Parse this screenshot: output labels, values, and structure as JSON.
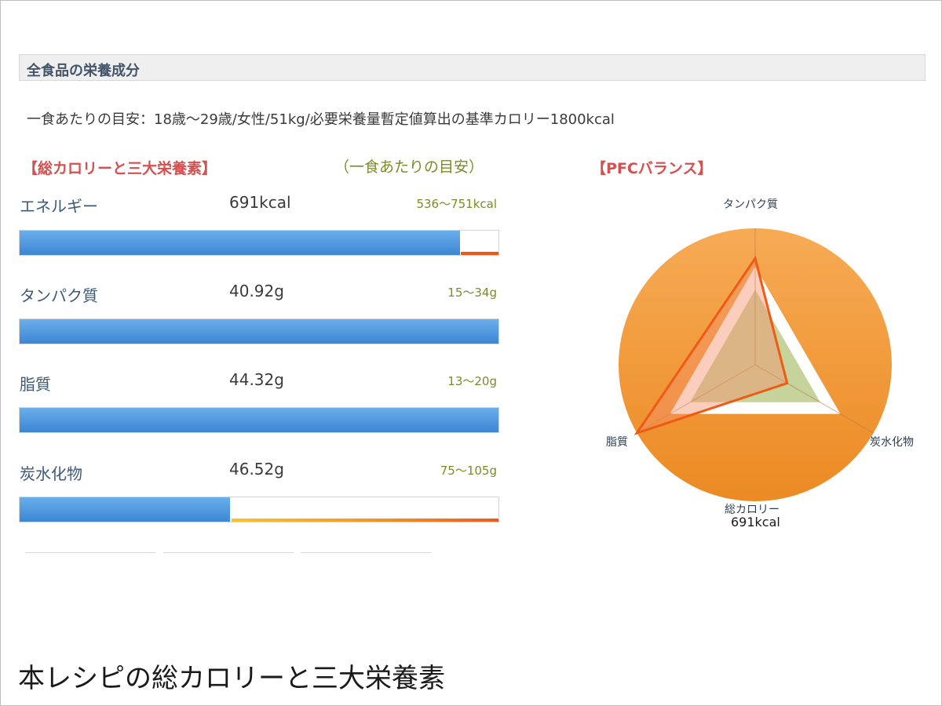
{
  "header": {
    "title": "全食品の栄養成分"
  },
  "guideline": "一食あたりの目安：18歳〜29歳/女性/51kg/必要栄養量暫定値算出の基準カロリー1800kcal",
  "left_heading": "【総カロリーと三大栄養素】",
  "left_range_heading": "（一食あたりの目安）",
  "right_heading": "【PFCバランス】",
  "caption": "本レシピの総カロリーと三大栄養素",
  "colors": {
    "bar_blue": "#3c86d4",
    "target_red": "#f0581a",
    "range_green": "#7e8a2a",
    "heading_red": "#d5504f",
    "pfc_orange": "#f29a35"
  },
  "chart_data": [
    {
      "type": "bar",
      "orientation": "horizontal",
      "title": "【総カロリーと三大栄養素】",
      "categories": [
        "エネルギー",
        "タンパク質",
        "脂質",
        "炭水化物"
      ],
      "rows": [
        {
          "name": "エネルギー",
          "value_label": "691kcal",
          "value": 691,
          "unit": "kcal",
          "range_label": "536〜751kcal",
          "range": [
            536,
            751
          ],
          "fill": 0.92
        },
        {
          "name": "タンパク質",
          "value_label": "40.92g",
          "value": 40.92,
          "unit": "g",
          "range_label": "15〜34g",
          "range": [
            15,
            34
          ],
          "fill": 1.0
        },
        {
          "name": "脂質",
          "value_label": "44.32g",
          "value": 44.32,
          "unit": "g",
          "range_label": "13〜20g",
          "range": [
            13,
            20
          ],
          "fill": 1.0
        },
        {
          "name": "炭水化物",
          "value_label": "46.52g",
          "value": 46.52,
          "unit": "g",
          "range_label": "75〜105g",
          "range": [
            75,
            105
          ],
          "fill": 0.44
        }
      ]
    },
    {
      "type": "radar",
      "title": "【PFCバランス】",
      "axes": [
        "タンパク質",
        "炭水化物",
        "脂質"
      ],
      "bottom_label": "総カロリー",
      "total_label": "691kcal",
      "series": [
        {
          "values": [
            0.78,
            0.27,
            1.0
          ]
        }
      ],
      "target_ranges": {
        "min": [
          0.55,
          0.55,
          0.55
        ],
        "max": [
          0.72,
          0.72,
          0.72
        ]
      }
    }
  ]
}
